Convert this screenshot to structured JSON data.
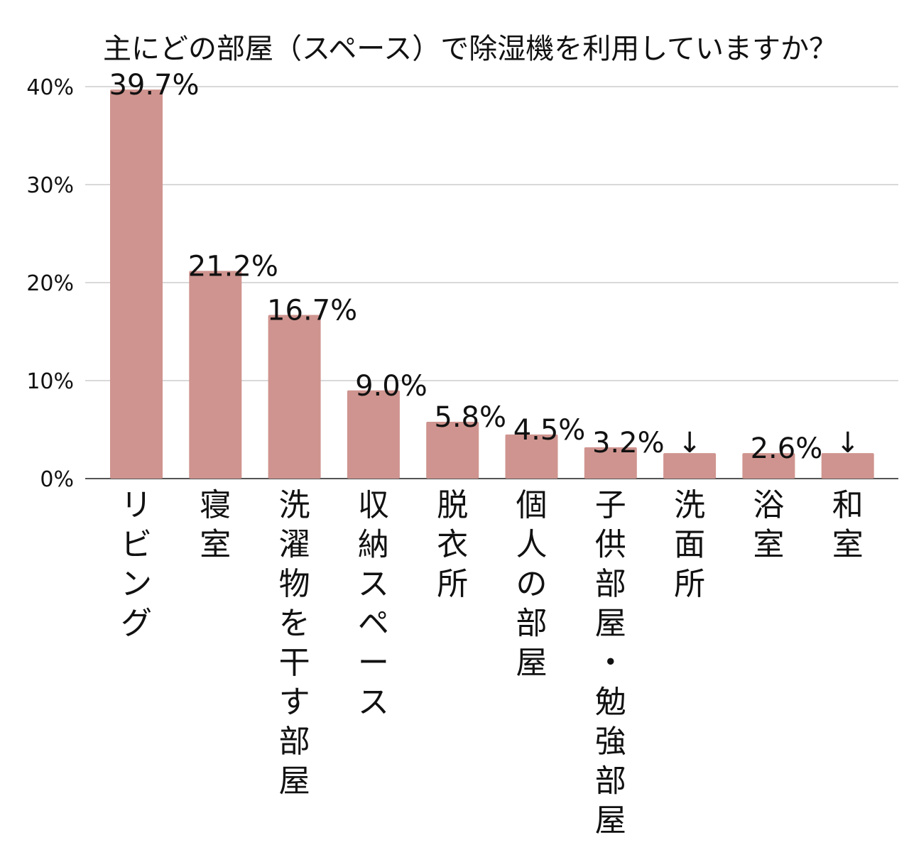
{
  "chart_data": {
    "type": "bar",
    "title": "主にどの部屋（スペース）で除湿機を利用していますか？",
    "xlabel": "",
    "ylabel": "",
    "categories": [
      "リビング",
      "寝室",
      "洗濯物を干す部屋",
      "収納スペース",
      "脱衣所",
      "個人の部屋",
      "子供部屋・勉強部屋",
      "洗面所",
      "浴室",
      "和室"
    ],
    "values": [
      39.7,
      21.2,
      16.7,
      9.0,
      5.8,
      4.5,
      3.2,
      2.6,
      2.6,
      2.6
    ],
    "data_labels": [
      "39.7%",
      "21.2%",
      "16.7%",
      "9.0%",
      "5.8%",
      "4.5%",
      "3.2%",
      "↓",
      "2.6%",
      "↓"
    ],
    "shared_label_note_arrows": [
      "洗面所",
      "浴室",
      "和室"
    ],
    "ylim": [
      0,
      40
    ],
    "yticks": [
      0,
      10,
      20,
      30,
      40
    ],
    "ytick_labels": [
      "0%",
      "10%",
      "20%",
      "30%",
      "40%"
    ],
    "grid": true,
    "bar_color": "#cf948f"
  }
}
